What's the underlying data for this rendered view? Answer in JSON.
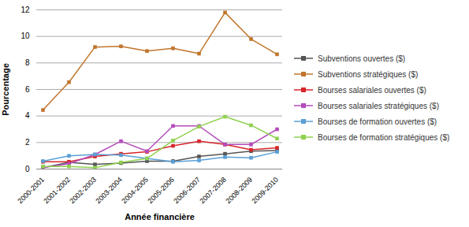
{
  "chart_data": {
    "type": "line",
    "x_label": "Année financière",
    "y_label": "Pourcentage",
    "categories": [
      "2000-2001",
      "2001-2002",
      "2002-2003",
      "2003-2004",
      "2004-2005",
      "2005-2006",
      "2006-2007",
      "2007-2008",
      "2008-2009",
      "2009-2010"
    ],
    "ylim": [
      0,
      12
    ],
    "yticks": [
      0,
      2,
      4,
      6,
      8,
      10,
      12
    ],
    "grid": true,
    "legend": "right",
    "marker": "square",
    "series": [
      {
        "name": "Subventions ouvertes ($)",
        "color": "#555555",
        "values": [
          0.1,
          0.5,
          0.35,
          0.45,
          0.6,
          0.6,
          0.95,
          1.15,
          1.35,
          1.4
        ]
      },
      {
        "name": "Subventions stratégiques ($)",
        "color": "#c0762c",
        "values": [
          4.45,
          6.55,
          9.2,
          9.25,
          8.9,
          9.1,
          8.7,
          11.8,
          9.8,
          8.65
        ]
      },
      {
        "name": "Bourses salariales ouvertes ($)",
        "color": "#d7262b",
        "values": [
          0.55,
          0.55,
          0.95,
          1.15,
          1.3,
          1.75,
          2.1,
          1.85,
          1.45,
          1.6
        ]
      },
      {
        "name": "Bourses salariales stratégiques ($)",
        "color": "#b44cbc",
        "values": [
          0.1,
          0.4,
          1.1,
          2.1,
          1.35,
          3.25,
          3.25,
          1.85,
          1.85,
          3.0
        ]
      },
      {
        "name": "Bourses de formation ouvertes ($)",
        "color": "#5ba0d6",
        "values": [
          0.6,
          1.0,
          1.1,
          1.05,
          0.8,
          0.55,
          0.65,
          0.9,
          0.85,
          1.3
        ]
      },
      {
        "name": "Bourses de formation stratégiques ($)",
        "color": "#8fd14f",
        "values": [
          0.2,
          0.2,
          0.1,
          0.5,
          0.8,
          2.15,
          3.2,
          3.95,
          3.3,
          2.3
        ]
      }
    ]
  }
}
